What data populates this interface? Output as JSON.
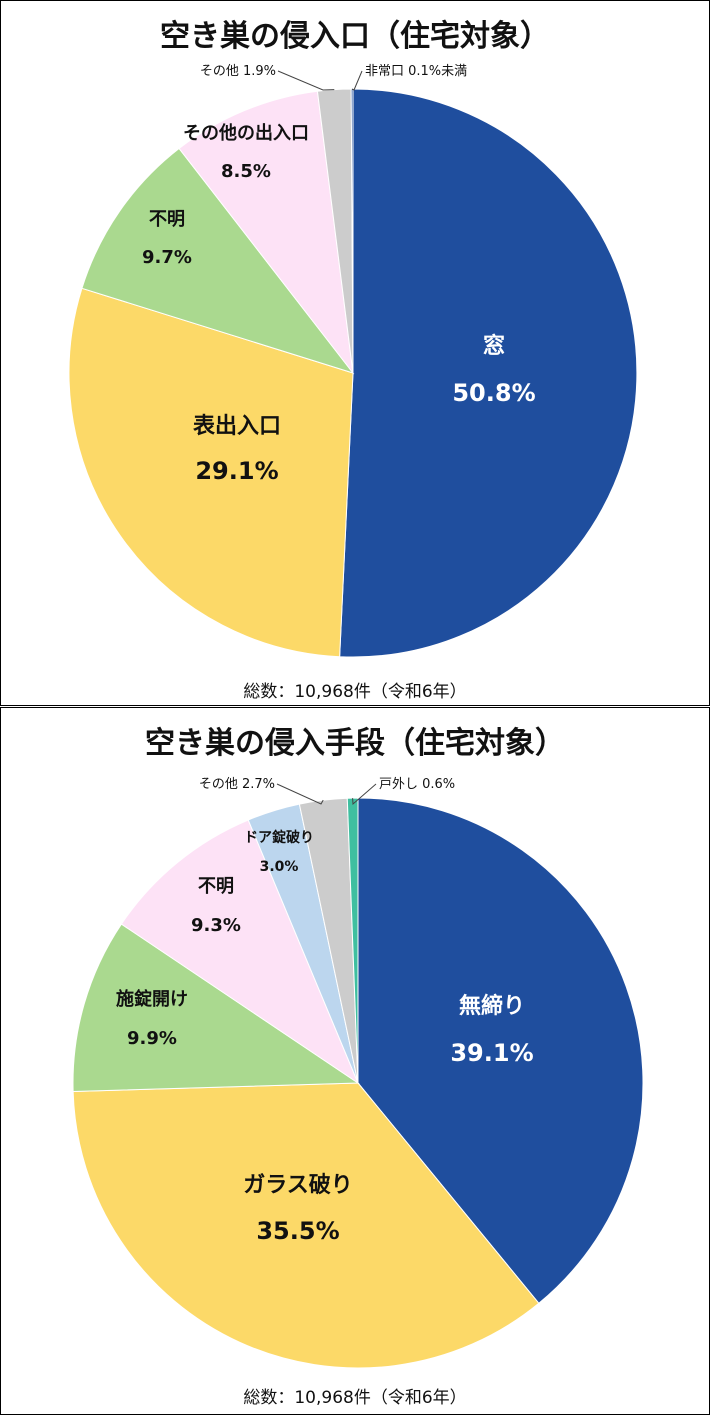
{
  "chart_data": [
    {
      "type": "pie",
      "title": "空き巣の侵入口（住宅対象）",
      "footer": "総数：10,968件（令和6年）",
      "slices": [
        {
          "label": "窓",
          "value": 50.8,
          "value_label": "50.8%",
          "color": "#1f4e9e",
          "text_color": "#ffffff"
        },
        {
          "label": "表出入口",
          "value": 29.1,
          "value_label": "29.1%",
          "color": "#fcd968",
          "text_color": "#111111"
        },
        {
          "label": "不明",
          "value": 9.7,
          "value_label": "9.7%",
          "color": "#aad98f",
          "text_color": "#111111"
        },
        {
          "label": "その他の出入口",
          "value": 8.5,
          "value_label": "8.5%",
          "color": "#fde2f6",
          "text_color": "#111111"
        },
        {
          "label": "その他",
          "value": 1.9,
          "value_label": "1.9%",
          "color": "#cccccc",
          "text_color": "#111111"
        },
        {
          "label": "非常口",
          "value": 0.1,
          "value_label": "0.1%未満",
          "color": "#1f4e9e",
          "text_color": "#111111"
        }
      ]
    },
    {
      "type": "pie",
      "title": "空き巣の侵入手段（住宅対象）",
      "footer": "総数：10,968件（令和6年）",
      "slices": [
        {
          "label": "無締り",
          "value": 39.1,
          "value_label": "39.1%",
          "color": "#1f4e9e",
          "text_color": "#ffffff"
        },
        {
          "label": "ガラス破り",
          "value": 35.5,
          "value_label": "35.5%",
          "color": "#fcd968",
          "text_color": "#111111"
        },
        {
          "label": "施錠開け",
          "value": 9.9,
          "value_label": "9.9%",
          "color": "#aad98f",
          "text_color": "#111111"
        },
        {
          "label": "不明",
          "value": 9.3,
          "value_label": "9.3%",
          "color": "#fde2f6",
          "text_color": "#111111"
        },
        {
          "label": "ドア錠破り",
          "value": 3.0,
          "value_label": "3.0%",
          "color": "#bcd6ee",
          "text_color": "#111111"
        },
        {
          "label": "その他",
          "value": 2.7,
          "value_label": "2.7%",
          "color": "#cccccc",
          "text_color": "#111111"
        },
        {
          "label": "戸外し",
          "value": 0.6,
          "value_label": "0.6%",
          "color": "#3fbfa0",
          "text_color": "#111111"
        }
      ]
    }
  ]
}
